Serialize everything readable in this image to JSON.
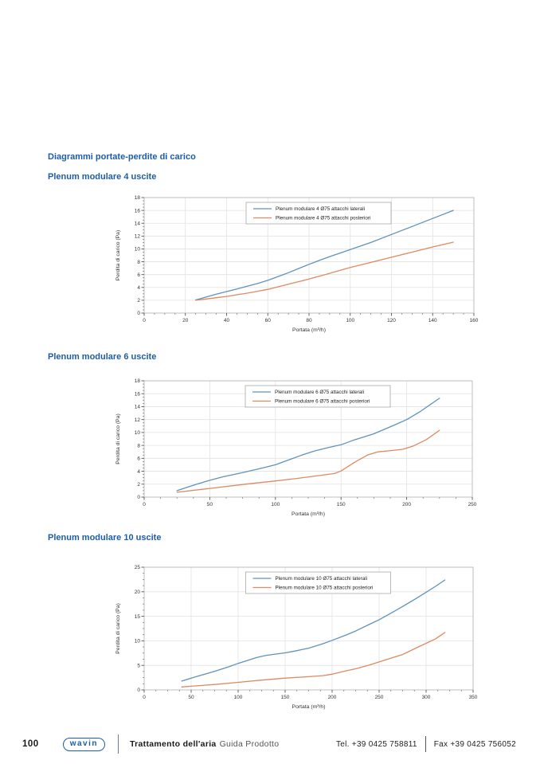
{
  "page": {
    "main_title": "Diagrammi portate-perdite di carico",
    "accent_color": "#1d5da7"
  },
  "sections": [
    {
      "heading": "Plenum modulare 4 uscite"
    },
    {
      "heading": "Plenum modulare 6 uscite"
    },
    {
      "heading": "Plenum modulare 10 uscite"
    }
  ],
  "chart_data": [
    {
      "type": "line",
      "title": "Plenum modulare 4 uscite",
      "xlabel": "Portata (m³/h)",
      "ylabel": "Perdita di carico (Pa)",
      "xlim": [
        0,
        160
      ],
      "xstep": 20,
      "ylim": [
        0,
        18
      ],
      "ystep": 2,
      "grid": true,
      "legend_position": "top-center",
      "series": [
        {
          "name": "Plenum modulare 4 Ø75 attacchi laterali",
          "color": "#5e93bb",
          "points": [
            [
              25,
              2.05
            ],
            [
              30,
              2.5
            ],
            [
              35,
              2.95
            ],
            [
              40,
              3.35
            ],
            [
              45,
              3.75
            ],
            [
              50,
              4.2
            ],
            [
              55,
              4.6
            ],
            [
              60,
              5.1
            ],
            [
              65,
              5.7
            ],
            [
              70,
              6.3
            ],
            [
              75,
              6.95
            ],
            [
              80,
              7.6
            ],
            [
              85,
              8.2
            ],
            [
              90,
              8.8
            ],
            [
              95,
              9.35
            ],
            [
              100,
              9.9
            ],
            [
              110,
              11.0
            ],
            [
              120,
              12.25
            ],
            [
              130,
              13.5
            ],
            [
              140,
              14.75
            ],
            [
              150,
              16.0
            ]
          ]
        },
        {
          "name": "Plenum modulare 4 Ø75 attacchi posteriori",
          "color": "#dc8a63",
          "points": [
            [
              25,
              2.0
            ],
            [
              30,
              2.2
            ],
            [
              35,
              2.4
            ],
            [
              40,
              2.6
            ],
            [
              45,
              2.85
            ],
            [
              50,
              3.1
            ],
            [
              55,
              3.4
            ],
            [
              60,
              3.7
            ],
            [
              65,
              4.1
            ],
            [
              70,
              4.5
            ],
            [
              75,
              4.9
            ],
            [
              80,
              5.3
            ],
            [
              85,
              5.75
            ],
            [
              90,
              6.2
            ],
            [
              95,
              6.65
            ],
            [
              100,
              7.1
            ],
            [
              110,
              7.9
            ],
            [
              120,
              8.7
            ],
            [
              130,
              9.5
            ],
            [
              140,
              10.3
            ],
            [
              150,
              11.05
            ]
          ]
        }
      ]
    },
    {
      "type": "line",
      "title": "Plenum modulare 6 uscite",
      "xlabel": "Portata (m³/h)",
      "ylabel": "Perdita di carico (Pa)",
      "xlim": [
        0,
        250
      ],
      "xstep": 50,
      "ylim": [
        0,
        18
      ],
      "ystep": 2,
      "grid": true,
      "legend_position": "top-center",
      "series": [
        {
          "name": "Plenum modulare 6 Ø75 attacchi laterali",
          "color": "#5e93bb",
          "points": [
            [
              25,
              1.0
            ],
            [
              40,
              2.0
            ],
            [
              50,
              2.6
            ],
            [
              60,
              3.15
            ],
            [
              75,
              3.8
            ],
            [
              90,
              4.5
            ],
            [
              100,
              5.0
            ],
            [
              110,
              5.75
            ],
            [
              120,
              6.5
            ],
            [
              130,
              7.15
            ],
            [
              140,
              7.65
            ],
            [
              150,
              8.1
            ],
            [
              160,
              8.85
            ],
            [
              175,
              9.8
            ],
            [
              190,
              11.1
            ],
            [
              200,
              12.0
            ],
            [
              210,
              13.2
            ],
            [
              225,
              15.3
            ]
          ]
        },
        {
          "name": "Plenum modulare 6 Ø75 attacchi posteriori",
          "color": "#dc8a63",
          "points": [
            [
              25,
              0.75
            ],
            [
              50,
              1.35
            ],
            [
              75,
              1.95
            ],
            [
              100,
              2.5
            ],
            [
              115,
              2.85
            ],
            [
              130,
              3.25
            ],
            [
              145,
              3.65
            ],
            [
              150,
              4.05
            ],
            [
              160,
              5.35
            ],
            [
              170,
              6.5
            ],
            [
              178,
              7.0
            ],
            [
              188,
              7.2
            ],
            [
              197,
              7.4
            ],
            [
              205,
              7.9
            ],
            [
              215,
              8.9
            ],
            [
              225,
              10.35
            ]
          ]
        }
      ]
    },
    {
      "type": "line",
      "title": "Plenum modulare 10 uscite",
      "xlabel": "Portata (m³/h)",
      "ylabel": "Perdita di carico (Pa)",
      "xlim": [
        0,
        350
      ],
      "xstep": 50,
      "ylim": [
        0,
        25
      ],
      "ystep": 5,
      "grid": true,
      "legend_position": "top-center",
      "series": [
        {
          "name": "Plenum modulare 10 Ø75 attacchi laterali",
          "color": "#5e93bb",
          "points": [
            [
              40,
              1.8
            ],
            [
              50,
              2.4
            ],
            [
              60,
              2.95
            ],
            [
              75,
              3.8
            ],
            [
              90,
              4.7
            ],
            [
              100,
              5.4
            ],
            [
              110,
              6.0
            ],
            [
              120,
              6.6
            ],
            [
              130,
              7.05
            ],
            [
              140,
              7.3
            ],
            [
              150,
              7.55
            ],
            [
              160,
              7.9
            ],
            [
              175,
              8.5
            ],
            [
              190,
              9.4
            ],
            [
              200,
              10.1
            ],
            [
              215,
              11.2
            ],
            [
              225,
              12.0
            ],
            [
              240,
              13.4
            ],
            [
              250,
              14.3
            ],
            [
              265,
              15.9
            ],
            [
              275,
              17.0
            ],
            [
              290,
              18.7
            ],
            [
              300,
              19.9
            ],
            [
              310,
              21.1
            ],
            [
              320,
              22.4
            ]
          ]
        },
        {
          "name": "Plenum modulare 10 Ø75 attacchi posteriori",
          "color": "#dc8a63",
          "points": [
            [
              40,
              0.6
            ],
            [
              50,
              0.75
            ],
            [
              75,
              1.1
            ],
            [
              100,
              1.55
            ],
            [
              125,
              2.0
            ],
            [
              150,
              2.4
            ],
            [
              175,
              2.7
            ],
            [
              190,
              2.9
            ],
            [
              200,
              3.2
            ],
            [
              215,
              3.9
            ],
            [
              225,
              4.3
            ],
            [
              240,
              5.1
            ],
            [
              250,
              5.7
            ],
            [
              265,
              6.6
            ],
            [
              275,
              7.2
            ],
            [
              290,
              8.6
            ],
            [
              300,
              9.5
            ],
            [
              310,
              10.4
            ],
            [
              320,
              11.7
            ]
          ]
        }
      ]
    }
  ],
  "footer": {
    "page_number": "100",
    "brand": "wavin",
    "doc_title": "Trattamento dell'aria",
    "doc_subtitle": "Guida Prodotto",
    "tel": "Tel. +39 0425 758811",
    "fax": "Fax +39 0425 756052"
  }
}
